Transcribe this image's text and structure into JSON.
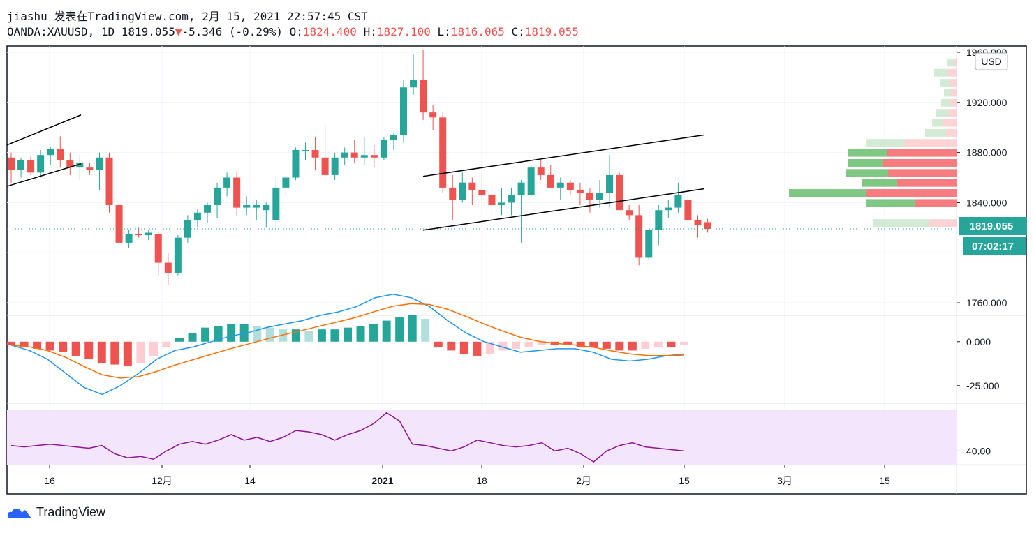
{
  "header": {
    "line1": "jiashu 发表在TradingView.com, 2月 15, 2021 22:57:45 CST",
    "symbol": "OANDA:XAUUSD, 1D",
    "last": "1819.055",
    "change": "-5.346 (-0.29%)",
    "o_label": "O:",
    "o": "1824.400",
    "h_label": "H:",
    "h": "1827.100",
    "l_label": "L:",
    "l": "1816.065",
    "c_label": "C:",
    "c": "1819.055"
  },
  "axis": {
    "currency": "USD",
    "price_labels": [
      "1960.000",
      "1920.000",
      "1880.000",
      "1840.000",
      "1760.000"
    ],
    "macd_labels": [
      "0.000",
      "-25.000"
    ],
    "rsi_labels": [
      "40.00"
    ],
    "time_labels": [
      "16",
      "12月",
      "14",
      "2021",
      "18",
      "2月",
      "15",
      "3月",
      "15"
    ],
    "last_price_tag": "1819.055",
    "countdown_tag": "07:02:17"
  },
  "brand": "TradingView",
  "colors": {
    "up": "#26a69a",
    "down": "#ef5350",
    "macd": "#2196f3",
    "signal": "#ff6d00",
    "rsi": "#8e1599",
    "rsi_band": "#f3e5fc"
  },
  "chart_data": {
    "type": "candlestick",
    "symbol": "OANDA:XAUUSD",
    "interval": "1D",
    "price_range": [
      1750,
      1965
    ],
    "candles_ohlc": [
      [
        1876,
        1880,
        1856,
        1866
      ],
      [
        1866,
        1876,
        1860,
        1874
      ],
      [
        1874,
        1877,
        1862,
        1864
      ],
      [
        1864,
        1882,
        1860,
        1878
      ],
      [
        1878,
        1885,
        1870,
        1883
      ],
      [
        1883,
        1893,
        1868,
        1874
      ],
      [
        1874,
        1880,
        1862,
        1868
      ],
      [
        1868,
        1878,
        1858,
        1872
      ],
      [
        1868,
        1872,
        1862,
        1866
      ],
      [
        1866,
        1880,
        1850,
        1876
      ],
      [
        1876,
        1880,
        1832,
        1838
      ],
      [
        1838,
        1840,
        1808,
        1808
      ],
      [
        1808,
        1818,
        1804,
        1815
      ],
      [
        1815,
        1820,
        1812,
        1814
      ],
      [
        1814,
        1818,
        1810,
        1816
      ],
      [
        1815,
        1817,
        1782,
        1792
      ],
      [
        1792,
        1800,
        1774,
        1784
      ],
      [
        1784,
        1814,
        1782,
        1812
      ],
      [
        1812,
        1830,
        1808,
        1826
      ],
      [
        1826,
        1835,
        1820,
        1832
      ],
      [
        1832,
        1840,
        1824,
        1838
      ],
      [
        1838,
        1856,
        1828,
        1852
      ],
      [
        1852,
        1864,
        1845,
        1860
      ],
      [
        1860,
        1865,
        1830,
        1836
      ],
      [
        1836,
        1845,
        1830,
        1838
      ],
      [
        1836,
        1842,
        1826,
        1838
      ],
      [
        1834,
        1840,
        1820,
        1838
      ],
      [
        1826,
        1860,
        1820,
        1852
      ],
      [
        1852,
        1862,
        1845,
        1860
      ],
      [
        1860,
        1884,
        1858,
        1882
      ],
      [
        1882,
        1888,
        1874,
        1882
      ],
      [
        1882,
        1892,
        1866,
        1876
      ],
      [
        1876,
        1902,
        1860,
        1862
      ],
      [
        1862,
        1880,
        1858,
        1876
      ],
      [
        1876,
        1884,
        1870,
        1880
      ],
      [
        1880,
        1890,
        1872,
        1876
      ],
      [
        1876,
        1892,
        1870,
        1878
      ],
      [
        1878,
        1886,
        1868,
        1876
      ],
      [
        1876,
        1892,
        1874,
        1890
      ],
      [
        1890,
        1896,
        1882,
        1894
      ],
      [
        1894,
        1938,
        1888,
        1932
      ],
      [
        1932,
        1958,
        1926,
        1938
      ],
      [
        1938,
        1962,
        1906,
        1912
      ],
      [
        1912,
        1918,
        1898,
        1908
      ],
      [
        1908,
        1912,
        1848,
        1852
      ],
      [
        1852,
        1862,
        1826,
        1842
      ],
      [
        1842,
        1864,
        1840,
        1856
      ],
      [
        1856,
        1860,
        1838,
        1850
      ],
      [
        1850,
        1862,
        1840,
        1846
      ],
      [
        1846,
        1854,
        1830,
        1838
      ],
      [
        1838,
        1852,
        1830,
        1840
      ],
      [
        1840,
        1852,
        1830,
        1846
      ],
      [
        1846,
        1858,
        1808,
        1856
      ],
      [
        1846,
        1870,
        1844,
        1868
      ],
      [
        1868,
        1874,
        1858,
        1862
      ],
      [
        1862,
        1870,
        1852,
        1852
      ],
      [
        1852,
        1860,
        1842,
        1856
      ],
      [
        1856,
        1858,
        1846,
        1850
      ],
      [
        1850,
        1856,
        1838,
        1848
      ],
      [
        1848,
        1852,
        1832,
        1842
      ],
      [
        1842,
        1858,
        1836,
        1848
      ],
      [
        1848,
        1878,
        1836,
        1862
      ],
      [
        1862,
        1864,
        1848,
        1834
      ],
      [
        1834,
        1838,
        1826,
        1830
      ],
      [
        1830,
        1838,
        1790,
        1796
      ],
      [
        1796,
        1818,
        1794,
        1818
      ],
      [
        1818,
        1838,
        1806,
        1834
      ],
      [
        1834,
        1842,
        1828,
        1836
      ],
      [
        1836,
        1856,
        1832,
        1846
      ],
      [
        1842,
        1846,
        1820,
        1826
      ],
      [
        1826,
        1830,
        1812,
        1822
      ],
      [
        1824.4,
        1827.1,
        1816.065,
        1819.055
      ]
    ],
    "volume_profile_levels": [
      1824,
      1840,
      1848,
      1856,
      1864,
      1872,
      1880,
      1888,
      1896,
      1904,
      1912,
      1920,
      1928,
      1936,
      1944,
      1952
    ],
    "macd": {
      "range": [
        -35,
        15
      ],
      "hist": [
        -2,
        -3,
        -4,
        -5,
        -6,
        -8,
        -10,
        -12,
        -13,
        -14,
        -12,
        -8,
        -3,
        2,
        5,
        8,
        9,
        10,
        10,
        9,
        8,
        7,
        7,
        6,
        7,
        7,
        8,
        9,
        10,
        12,
        14,
        15,
        13,
        -3,
        -5,
        -7,
        -8,
        -7,
        -5,
        -4,
        -3,
        -2,
        -2,
        -2,
        -3,
        -3,
        -4,
        -5,
        -5,
        -4,
        -3,
        -3,
        -2
      ],
      "macd": [
        -2,
        -5,
        -10,
        -18,
        -26,
        -30,
        -25,
        -18,
        -10,
        -5,
        -3,
        0,
        3,
        5,
        8,
        10,
        12,
        15,
        17,
        20,
        25,
        27,
        25,
        20,
        12,
        5,
        0,
        -3,
        -6,
        -5,
        -4,
        -4,
        -6,
        -10,
        -11,
        -10,
        -8,
        -7
      ]
    },
    "rsi": {
      "range": [
        30,
        75
      ],
      "upper": 70,
      "lower": 30,
      "values": [
        44,
        43,
        44,
        45,
        44,
        43,
        42,
        44,
        38,
        35,
        36,
        34,
        40,
        45,
        47,
        45,
        48,
        52,
        48,
        50,
        47,
        50,
        55,
        54,
        52,
        48,
        52,
        55,
        60,
        68,
        62,
        45,
        44,
        42,
        40,
        43,
        48,
        46,
        44,
        43,
        44,
        46,
        40,
        42,
        38,
        32,
        40,
        44,
        46,
        43,
        42,
        41,
        40
      ]
    }
  }
}
